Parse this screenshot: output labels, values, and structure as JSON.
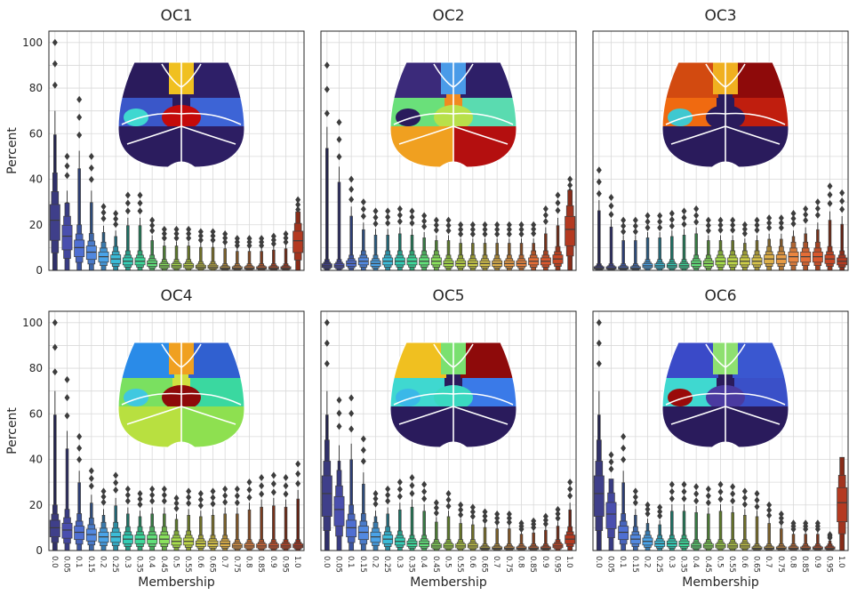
{
  "figure": {
    "ylabel": "Percent",
    "xlabel": "Membership",
    "ytick_labels": [
      "0",
      "20",
      "40",
      "60",
      "80",
      "100"
    ],
    "xtick_labels": [
      "0.0",
      "0.05",
      "0.1",
      "0.15",
      "0.2",
      "0.25",
      "0.3",
      "0.35",
      "0.4",
      "0.45",
      "0.5",
      "0.55",
      "0.6",
      "0.65",
      "0.7",
      "0.75",
      "0.8",
      "0.85",
      "0.9",
      "0.95",
      "1.0"
    ]
  },
  "chart_data": [
    {
      "type": "boxen",
      "title": "OC1",
      "ylim": [
        0,
        105
      ],
      "grid": true,
      "categories": [
        "0.0",
        "0.05",
        "0.1",
        "0.15",
        "0.2",
        "0.25",
        "0.3",
        "0.35",
        "0.4",
        "0.45",
        "0.5",
        "0.55",
        "0.6",
        "0.65",
        "0.7",
        "0.75",
        "0.8",
        "0.85",
        "0.9",
        "0.95",
        "1.0"
      ],
      "medians": [
        22,
        15,
        10,
        8,
        6,
        5,
        4,
        4,
        3,
        2,
        2,
        2,
        1.5,
        1.5,
        1,
        1,
        1,
        1,
        1,
        1,
        13
      ],
      "maxima": [
        100,
        50,
        75,
        50,
        28,
        25,
        33,
        33,
        22,
        18,
        18,
        18,
        17,
        17,
        16,
        14,
        14,
        14,
        15,
        16,
        31
      ],
      "inset": "brain-map-oc1"
    },
    {
      "type": "boxen",
      "title": "OC2",
      "ylim": [
        0,
        105
      ],
      "grid": true,
      "categories": [
        "0.0",
        "0.05",
        "0.1",
        "0.15",
        "0.2",
        "0.25",
        "0.3",
        "0.35",
        "0.4",
        "0.45",
        "0.5",
        "0.55",
        "0.6",
        "0.65",
        "0.7",
        "0.75",
        "0.8",
        "0.85",
        "0.9",
        "0.95",
        "1.0"
      ],
      "medians": [
        2,
        2,
        3,
        4,
        3,
        4,
        4,
        4,
        4,
        4,
        3,
        3,
        3,
        3,
        3,
        3,
        3,
        4,
        4,
        5,
        18
      ],
      "maxima": [
        90,
        65,
        40,
        30,
        26,
        26,
        27,
        26,
        24,
        22,
        22,
        20,
        20,
        20,
        20,
        20,
        20,
        20,
        27,
        33,
        40
      ],
      "inset": "brain-map-oc2"
    },
    {
      "type": "boxen",
      "title": "OC3",
      "ylim": [
        0,
        105
      ],
      "grid": true,
      "categories": [
        "0.0",
        "0.05",
        "0.1",
        "0.15",
        "0.2",
        "0.25",
        "0.3",
        "0.35",
        "0.4",
        "0.45",
        "0.5",
        "0.55",
        "0.6",
        "0.65",
        "0.7",
        "0.75",
        "0.8",
        "0.85",
        "0.9",
        "0.95",
        "1.0"
      ],
      "medians": [
        1,
        1,
        1,
        1,
        2,
        2,
        2,
        2,
        3,
        3,
        4,
        4,
        4,
        4,
        5,
        5,
        6,
        6,
        6,
        5,
        4
      ],
      "maxima": [
        44,
        32,
        22,
        22,
        24,
        24,
        25,
        26,
        27,
        22,
        22,
        22,
        20,
        22,
        23,
        23,
        25,
        27,
        30,
        37,
        34
      ],
      "inset": "brain-map-oc3"
    },
    {
      "type": "boxen",
      "title": "OC4",
      "ylim": [
        0,
        105
      ],
      "grid": true,
      "categories": [
        "0.0",
        "0.05",
        "0.1",
        "0.15",
        "0.2",
        "0.25",
        "0.3",
        "0.35",
        "0.4",
        "0.45",
        "0.5",
        "0.55",
        "0.6",
        "0.65",
        "0.7",
        "0.75",
        "0.8",
        "0.85",
        "0.9",
        "0.95",
        "1.0"
      ],
      "medians": [
        10,
        9,
        8,
        7,
        6,
        6,
        5,
        5,
        5,
        5,
        4,
        4,
        3,
        3,
        3,
        2,
        2,
        2,
        2,
        2,
        2
      ],
      "maxima": [
        100,
        75,
        50,
        35,
        26,
        33,
        27,
        25,
        27,
        27,
        23,
        26,
        25,
        26,
        27,
        27,
        30,
        32,
        33,
        32,
        38
      ],
      "inset": "brain-map-oc4"
    },
    {
      "type": "boxen",
      "title": "OC5",
      "ylim": [
        0,
        105
      ],
      "grid": true,
      "categories": [
        "0.0",
        "0.05",
        "0.1",
        "0.15",
        "0.2",
        "0.25",
        "0.3",
        "0.35",
        "0.4",
        "0.45",
        "0.5",
        "0.55",
        "0.6",
        "0.65",
        "0.7",
        "0.75",
        "0.8",
        "0.85",
        "0.9",
        "0.95",
        "1.0"
      ],
      "medians": [
        25,
        18,
        10,
        8,
        6,
        5,
        4,
        3,
        3,
        2,
        2,
        2,
        2,
        1,
        1,
        1,
        1,
        1,
        1,
        2,
        5
      ],
      "maxima": [
        100,
        66,
        67,
        49,
        25,
        27,
        30,
        32,
        29,
        21,
        25,
        20,
        19,
        17,
        16,
        16,
        12,
        13,
        15,
        18,
        30
      ],
      "inset": "brain-map-oc5"
    },
    {
      "type": "boxen",
      "title": "OC6",
      "ylim": [
        0,
        105
      ],
      "grid": true,
      "categories": [
        "0.0",
        "0.05",
        "0.1",
        "0.15",
        "0.2",
        "0.25",
        "0.3",
        "0.35",
        "0.4",
        "0.45",
        "0.5",
        "0.55",
        "0.6",
        "0.65",
        "0.7",
        "0.75",
        "0.8",
        "0.85",
        "0.9",
        "0.95",
        "1.0"
      ],
      "medians": [
        25,
        16,
        8,
        5,
        4,
        3,
        3,
        3,
        2,
        2,
        2,
        2,
        2,
        1,
        1,
        1,
        1,
        1,
        1,
        1,
        21
      ],
      "maxima": [
        100,
        42,
        50,
        26,
        20,
        19,
        29,
        29,
        28,
        27,
        29,
        28,
        26,
        25,
        20,
        16,
        12,
        12,
        12,
        7,
        38
      ],
      "inset": "brain-map-oc6"
    }
  ]
}
